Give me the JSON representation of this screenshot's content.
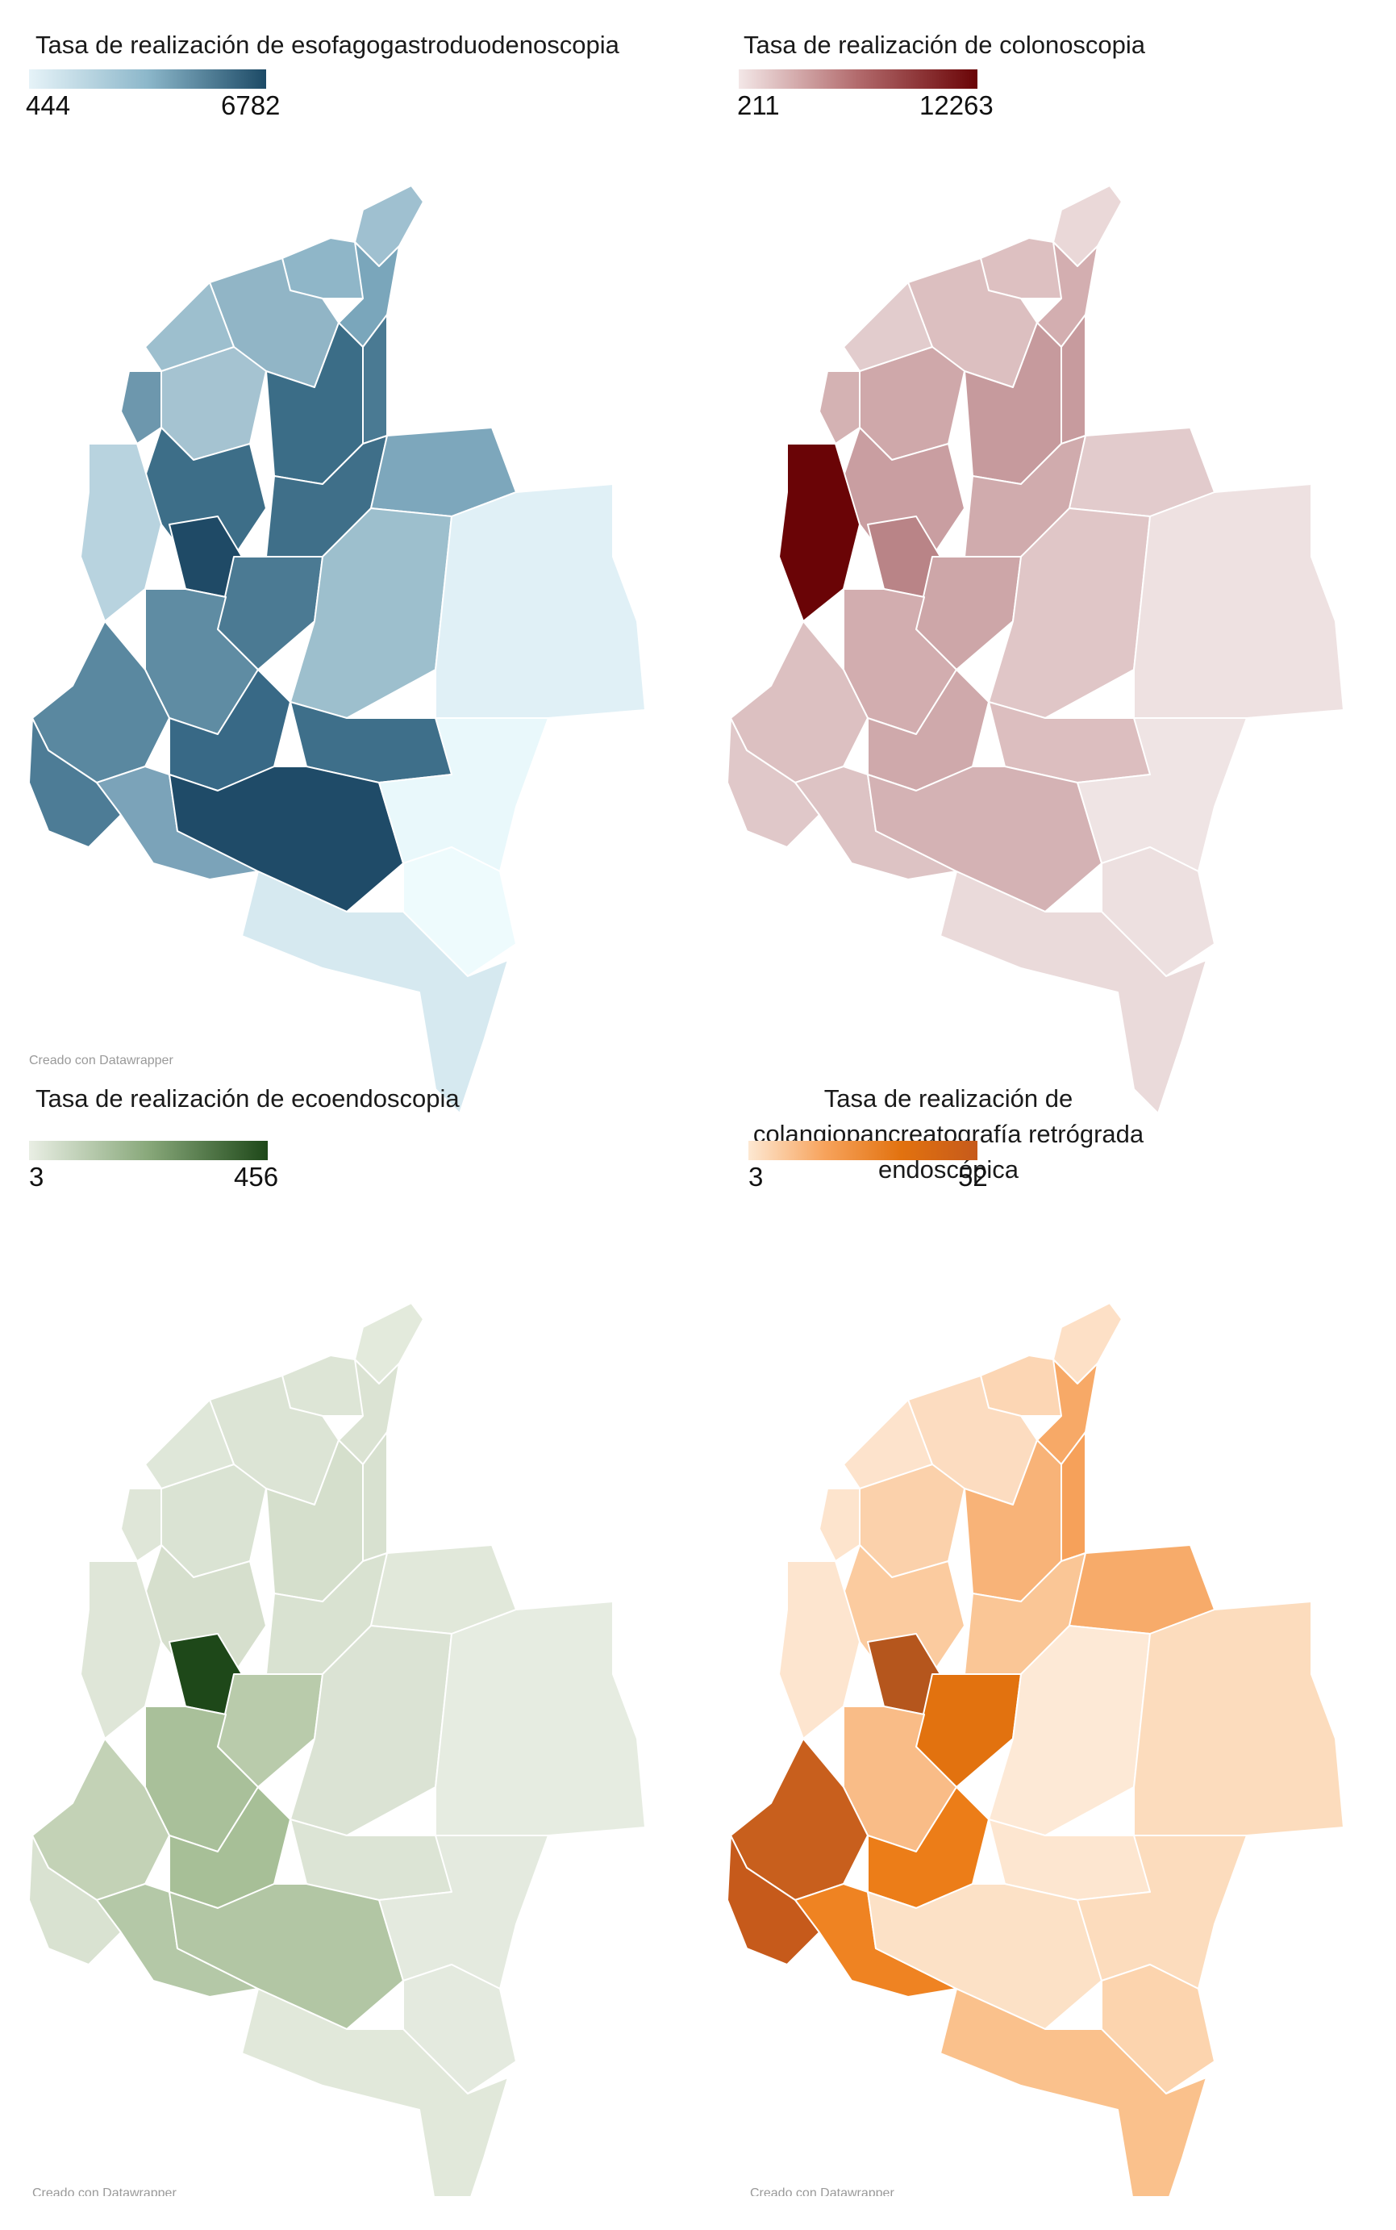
{
  "colors": {
    "esofago_scale": [
      "#e6f3f8",
      "#1c4a66"
    ],
    "colono_scale": [
      "#f3e7e7",
      "#6a0406"
    ],
    "ecoendo_scale": [
      "#e9eee4",
      "#1e4819"
    ],
    "cpre_scale": [
      "#fde8d2",
      "#c65a1b"
    ]
  },
  "panels": [
    {
      "title": "Tasa de realización de esofagogastroduodenoscopia",
      "legend_min": "444",
      "legend_max": "6782",
      "credit": "Creado con Datawrapper"
    },
    {
      "title": "Tasa de realización de colonoscopia",
      "legend_min": "211",
      "legend_max": "12263",
      "credit": ""
    },
    {
      "title": "Tasa de realización de ecoendoscopia",
      "legend_min": "3",
      "legend_max": "456",
      "credit": "Creado con Datawrapper"
    },
    {
      "title": "Tasa de realización de colangiopancreatografía retrógrada endoscópica",
      "legend_min": "3",
      "legend_max": "52",
      "credit": "Creado con Datawrapper"
    }
  ]
}
